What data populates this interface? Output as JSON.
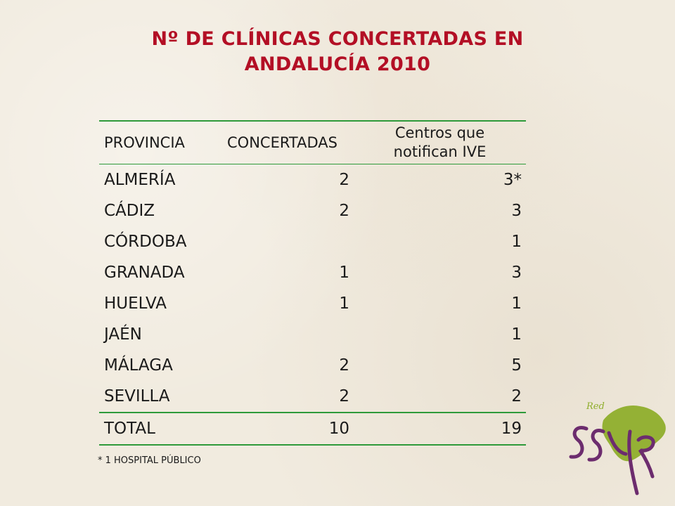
{
  "title": {
    "line1": "Nº DE CLÍNICAS CONCERTADAS EN",
    "line2": "ANDALUCÍA 2010"
  },
  "table": {
    "headers": [
      "PROVINCIA",
      "CONCERTADAS",
      "Centros que notifican IVE"
    ],
    "rows": [
      {
        "provincia": "ALMERÍA",
        "concertadas": "2",
        "centros": "3*"
      },
      {
        "provincia": "CÁDIZ",
        "concertadas": "2",
        "centros": "3"
      },
      {
        "provincia": "CÓRDOBA",
        "concertadas": "",
        "centros": "1"
      },
      {
        "provincia": "GRANADA",
        "concertadas": "1",
        "centros": "3"
      },
      {
        "provincia": "HUELVA",
        "concertadas": "1",
        "centros": "1"
      },
      {
        "provincia": "JAÉN",
        "concertadas": "",
        "centros": "1"
      },
      {
        "provincia": "MÁLAGA",
        "concertadas": "2",
        "centros": "5"
      },
      {
        "provincia": "SEVILLA",
        "concertadas": "2",
        "centros": "2"
      }
    ],
    "total": {
      "provincia": "TOTAL",
      "concertadas": "10",
      "centros": "19"
    }
  },
  "footnote": "* 1 HOSPITAL PÚBLICO",
  "logo": {
    "top_text": "Red",
    "main_text": "SSYR"
  },
  "colors": {
    "title": "#b30f25",
    "rule": "#2e9a3a",
    "logo_green": "#8fae2c",
    "logo_purple": "#6c2c6e"
  }
}
